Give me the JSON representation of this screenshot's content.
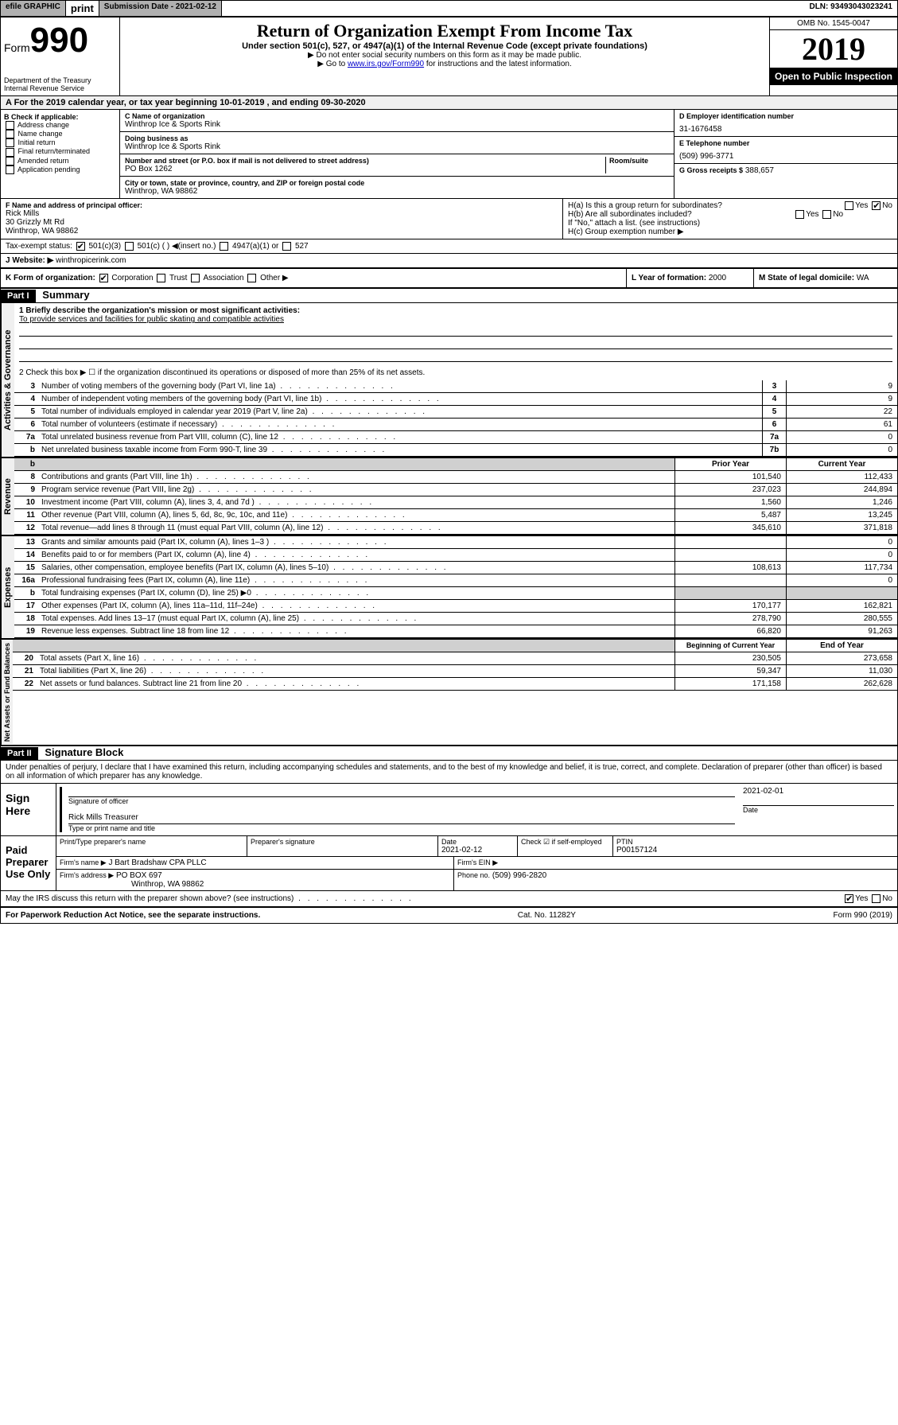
{
  "topbar": {
    "efile": "efile GRAPHIC",
    "print": "print",
    "sub_date_label": "Submission Date - 2021-02-12",
    "dln": "DLN: 93493043023241"
  },
  "header": {
    "form_prefix": "Form",
    "form_number": "990",
    "title": "Return of Organization Exempt From Income Tax",
    "subtitle": "Under section 501(c), 527, or 4947(a)(1) of the Internal Revenue Code (except private foundations)",
    "notice1": "▶ Do not enter social security numbers on this form as it may be made public.",
    "notice2_pre": "▶ Go to ",
    "notice2_link": "www.irs.gov/Form990",
    "notice2_post": " for instructions and the latest information.",
    "omb": "OMB No. 1545-0047",
    "year": "2019",
    "open_public": "Open to Public Inspection",
    "dept1": "Department of the Treasury",
    "dept2": "Internal Revenue Service"
  },
  "period": "A For the 2019 calendar year, or tax year beginning 10-01-2019    , and ending 09-30-2020",
  "box_b": {
    "label": "B Check if applicable:",
    "items": [
      "Address change",
      "Name change",
      "Initial return",
      "Final return/terminated",
      "Amended return",
      "Application pending"
    ]
  },
  "box_c": {
    "name_label": "C Name of organization",
    "name": "Winthrop Ice & Sports Rink",
    "dba_label": "Doing business as",
    "dba": "Winthrop Ice & Sports Rink",
    "addr_label": "Number and street (or P.O. box if mail is not delivered to street address)",
    "room_label": "Room/suite",
    "addr": "PO Box 1262",
    "city_label": "City or town, state or province, country, and ZIP or foreign postal code",
    "city": "Winthrop, WA  98862"
  },
  "box_d": {
    "label": "D Employer identification number",
    "value": "31-1676458"
  },
  "box_e": {
    "label": "E Telephone number",
    "value": "(509) 996-3771"
  },
  "box_g": {
    "label": "G Gross receipts $",
    "value": "388,657"
  },
  "box_f": {
    "label": "F  Name and address of principal officer:",
    "name": "Rick Mills",
    "addr1": "30 Grizzly Mt Rd",
    "addr2": "Winthrop, WA  98862"
  },
  "box_h": {
    "ha": "H(a)  Is this a group return for subordinates?",
    "hb": "H(b)  Are all subordinates included?",
    "hb_note": "If \"No,\" attach a list. (see instructions)",
    "hc": "H(c)  Group exemption number ▶"
  },
  "tax_status": {
    "label": "Tax-exempt status:",
    "opts": [
      "501(c)(3)",
      "501(c) (  ) ◀(insert no.)",
      "4947(a)(1) or",
      "527"
    ]
  },
  "box_j": {
    "label": "J",
    "text": "Website: ▶",
    "value": "winthropicerink.com"
  },
  "box_k": {
    "label": "K Form of organization:",
    "opts": [
      "Corporation",
      "Trust",
      "Association",
      "Other ▶"
    ]
  },
  "box_l": {
    "label": "L Year of formation:",
    "value": "2000"
  },
  "box_m": {
    "label": "M State of legal domicile:",
    "value": "WA"
  },
  "part1": {
    "header": "Part I",
    "title": "Summary",
    "line1_label": "1  Briefly describe the organization's mission or most significant activities:",
    "line1_text": "To provide services and facilities for public skating and compatible activities",
    "line2": "2   Check this box ▶ ☐  if the organization discontinued its operations or disposed of more than 25% of its net assets.",
    "lines": [
      {
        "n": "3",
        "t": "Number of voting members of the governing body (Part VI, line 1a)",
        "b": "3",
        "v": "9"
      },
      {
        "n": "4",
        "t": "Number of independent voting members of the governing body (Part VI, line 1b)",
        "b": "4",
        "v": "9"
      },
      {
        "n": "5",
        "t": "Total number of individuals employed in calendar year 2019 (Part V, line 2a)",
        "b": "5",
        "v": "22"
      },
      {
        "n": "6",
        "t": "Total number of volunteers (estimate if necessary)",
        "b": "6",
        "v": "61"
      },
      {
        "n": "7a",
        "t": "Total unrelated business revenue from Part VIII, column (C), line 12",
        "b": "7a",
        "v": "0"
      },
      {
        "n": "b",
        "t": "Net unrelated business taxable income from Form 990-T, line 39",
        "b": "7b",
        "v": "0"
      }
    ],
    "rev_header": {
      "prior": "Prior Year",
      "current": "Current Year"
    },
    "revenue": [
      {
        "n": "8",
        "t": "Contributions and grants (Part VIII, line 1h)",
        "p": "101,540",
        "c": "112,433"
      },
      {
        "n": "9",
        "t": "Program service revenue (Part VIII, line 2g)",
        "p": "237,023",
        "c": "244,894"
      },
      {
        "n": "10",
        "t": "Investment income (Part VIII, column (A), lines 3, 4, and 7d )",
        "p": "1,560",
        "c": "1,246"
      },
      {
        "n": "11",
        "t": "Other revenue (Part VIII, column (A), lines 5, 6d, 8c, 9c, 10c, and 11e)",
        "p": "5,487",
        "c": "13,245"
      },
      {
        "n": "12",
        "t": "Total revenue—add lines 8 through 11 (must equal Part VIII, column (A), line 12)",
        "p": "345,610",
        "c": "371,818"
      }
    ],
    "expenses": [
      {
        "n": "13",
        "t": "Grants and similar amounts paid (Part IX, column (A), lines 1–3 )",
        "p": "",
        "c": "0"
      },
      {
        "n": "14",
        "t": "Benefits paid to or for members (Part IX, column (A), line 4)",
        "p": "",
        "c": "0"
      },
      {
        "n": "15",
        "t": "Salaries, other compensation, employee benefits (Part IX, column (A), lines 5–10)",
        "p": "108,613",
        "c": "117,734"
      },
      {
        "n": "16a",
        "t": "Professional fundraising fees (Part IX, column (A), line 11e)",
        "p": "",
        "c": "0"
      },
      {
        "n": "b",
        "t": "Total fundraising expenses (Part IX, column (D), line 25) ▶0",
        "p": "gray",
        "c": "gray"
      },
      {
        "n": "17",
        "t": "Other expenses (Part IX, column (A), lines 11a–11d, 11f–24e)",
        "p": "170,177",
        "c": "162,821"
      },
      {
        "n": "18",
        "t": "Total expenses. Add lines 13–17 (must equal Part IX, column (A), line 25)",
        "p": "278,790",
        "c": "280,555"
      },
      {
        "n": "19",
        "t": "Revenue less expenses. Subtract line 18 from line 12",
        "p": "66,820",
        "c": "91,263"
      }
    ],
    "na_header": {
      "prior": "Beginning of Current Year",
      "current": "End of Year"
    },
    "netassets": [
      {
        "n": "20",
        "t": "Total assets (Part X, line 16)",
        "p": "230,505",
        "c": "273,658"
      },
      {
        "n": "21",
        "t": "Total liabilities (Part X, line 26)",
        "p": "59,347",
        "c": "11,030"
      },
      {
        "n": "22",
        "t": "Net assets or fund balances. Subtract line 21 from line 20",
        "p": "171,158",
        "c": "262,628"
      }
    ]
  },
  "part2": {
    "header": "Part II",
    "title": "Signature Block",
    "perjury": "Under penalties of perjury, I declare that I have examined this return, including accompanying schedules and statements, and to the best of my knowledge and belief, it is true, correct, and complete. Declaration of preparer (other than officer) is based on all information of which preparer has any knowledge.",
    "sign_here": "Sign Here",
    "sig_officer": "Signature of officer",
    "sig_date": "2021-02-01",
    "date_label": "Date",
    "officer_name": "Rick Mills Treasurer",
    "type_name": "Type or print name and title",
    "paid_prep": "Paid Preparer Use Only",
    "prep_name_label": "Print/Type preparer's name",
    "prep_sig_label": "Preparer's signature",
    "prep_date_label": "Date",
    "prep_date": "2021-02-12",
    "check_self": "Check ☑ if self-employed",
    "ptin_label": "PTIN",
    "ptin": "P00157124",
    "firm_name_label": "Firm's name    ▶",
    "firm_name": "J Bart Bradshaw CPA PLLC",
    "firm_ein_label": "Firm's EIN ▶",
    "firm_addr_label": "Firm's address ▶",
    "firm_addr": "PO BOX 697",
    "firm_city": "Winthrop, WA  98862",
    "phone_label": "Phone no.",
    "phone": "(509) 996-2820",
    "discuss": "May the IRS discuss this return with the preparer shown above? (see instructions)",
    "paperwork": "For Paperwork Reduction Act Notice, see the separate instructions.",
    "cat": "Cat. No. 11282Y",
    "form_foot": "Form 990 (2019)"
  },
  "vert_labels": {
    "ag": "Activities & Governance",
    "rev": "Revenue",
    "exp": "Expenses",
    "na": "Net Assets or Fund Balances"
  }
}
